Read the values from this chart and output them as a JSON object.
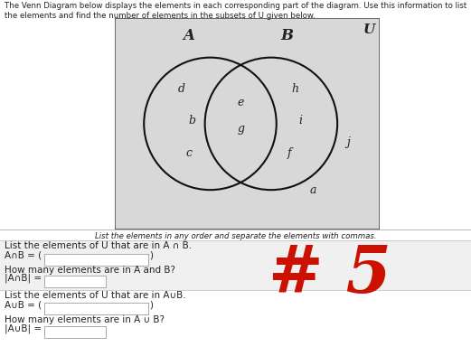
{
  "title_line1": "The Venn Diagram below displays the elements in each corresponding part of the diagram. Use this information to list",
  "title_line2": "the elements and find the number of elements in the subsets of U given below.",
  "venn_label_A": "A",
  "venn_label_B": "B",
  "venn_label_U": "U",
  "circle_A_only": [
    "d",
    "b",
    "c"
  ],
  "circle_AB_intersect": [
    "e",
    "g"
  ],
  "circle_B_only": [
    "h",
    "i",
    "f"
  ],
  "outside_elements": [
    "j",
    "a"
  ],
  "separator_text": "List the elements in any order and separate the elements with commas.",
  "section1_label": "List the elements of U that are in A ∩ B.",
  "section1_eq": "A∩B = (",
  "section1_close": ")",
  "section1_count_label": "How many elements are in A and B?",
  "section1_count_eq": "|A∩B| =",
  "section2_label": "List the elements of U that are in A∪B.",
  "section2_eq": "A∪B = (",
  "section2_close": ")",
  "section2_count_label": "How many elements are in A ∪ B?",
  "section2_count_eq": "|A∪B| =",
  "hashtag_text": "# 5",
  "hashtag_color": "#cc1100",
  "bg_color": "#ffffff",
  "venn_box_bg": "#d8d8d8",
  "circle_color": "#111111",
  "text_color": "#222222",
  "font_size_title": 6.2,
  "font_size_elements": 9,
  "font_size_section": 7.5,
  "font_size_hashtag": 52
}
